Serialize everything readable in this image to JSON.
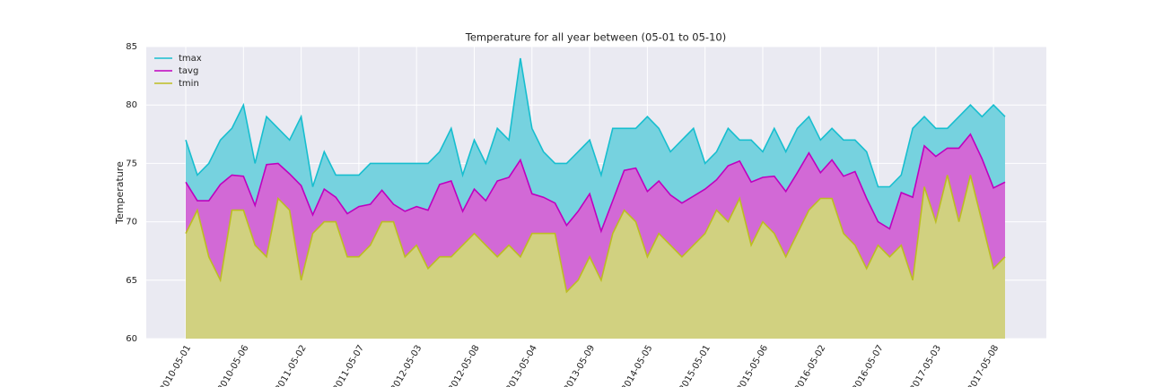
{
  "chart_data": {
    "type": "area",
    "title": "Temperature for all year between (05-01 to 05-10)",
    "ylabel": "Temperature",
    "categories": [
      "2010-05-01",
      null,
      null,
      null,
      null,
      "2010-05-06",
      null,
      null,
      null,
      null,
      "2011-05-02",
      null,
      null,
      null,
      null,
      "2011-05-07",
      null,
      null,
      null,
      null,
      "2012-05-03",
      null,
      null,
      null,
      null,
      "2012-05-08",
      null,
      null,
      null,
      null,
      "2013-05-04",
      null,
      null,
      null,
      null,
      "2013-05-09",
      null,
      null,
      null,
      null,
      "2014-05-05",
      null,
      null,
      null,
      null,
      "2015-05-01",
      null,
      null,
      null,
      null,
      "2015-05-06",
      null,
      null,
      null,
      null,
      "2016-05-02",
      null,
      null,
      null,
      null,
      "2016-05-07",
      null,
      null,
      null,
      null,
      "2017-05-03",
      null,
      null,
      null,
      null,
      "2017-05-08",
      null
    ],
    "series": [
      {
        "name": "tmax",
        "color": "#17becf",
        "values": [
          77,
          74,
          75,
          77,
          78,
          80,
          75,
          79,
          78,
          77,
          79,
          73,
          76,
          74,
          74,
          74,
          75,
          75,
          75,
          75,
          75,
          75,
          76,
          78,
          74,
          77,
          75,
          78,
          77,
          84,
          78,
          76,
          75,
          75,
          76,
          77,
          74,
          78,
          78,
          78,
          79,
          78,
          76,
          77,
          78,
          75,
          76,
          78,
          77,
          77,
          76,
          78,
          76,
          78,
          79,
          77,
          78,
          77,
          77,
          76,
          73,
          73,
          74,
          78,
          79,
          78,
          78,
          79,
          80,
          79,
          80,
          79
        ]
      },
      {
        "name": "tavg",
        "color": "#bf00bf",
        "values": [
          73.4,
          71.8,
          71.8,
          73.2,
          74,
          73.9,
          71.4,
          74.9,
          75,
          74.1,
          73.1,
          70.6,
          72.8,
          72.1,
          70.7,
          71.3,
          71.5,
          72.7,
          71.5,
          70.9,
          71.3,
          71,
          73.2,
          73.5,
          70.9,
          72.8,
          71.8,
          73.5,
          73.8,
          75.3,
          72.4,
          72.1,
          71.6,
          69.7,
          70.9,
          72.4,
          69.2,
          71.8,
          74.4,
          74.6,
          72.6,
          73.5,
          72.3,
          71.6,
          72.2,
          72.8,
          73.6,
          74.8,
          75.2,
          73.4,
          73.8,
          73.9,
          72.6,
          74.2,
          75.9,
          74.2,
          75.3,
          73.9,
          74.3,
          72,
          70,
          69.4,
          72.5,
          72.1,
          76.5,
          75.6,
          76.3,
          76.3,
          77.5,
          75.4,
          72.9,
          73.4
        ]
      },
      {
        "name": "tmin",
        "color": "#bcbd22",
        "values": [
          69,
          71,
          67,
          65,
          71,
          71,
          68,
          67,
          72,
          71,
          65,
          69,
          70,
          70,
          67,
          67,
          68,
          70,
          70,
          67,
          68,
          66,
          67,
          67,
          68,
          69,
          68,
          67,
          68,
          67,
          69,
          69,
          69,
          64,
          65,
          67,
          65,
          69,
          71,
          70,
          67,
          69,
          68,
          67,
          68,
          69,
          71,
          70,
          72,
          68,
          70,
          69,
          67,
          69,
          71,
          72,
          72,
          69,
          68,
          66,
          68,
          67,
          68,
          65,
          73,
          70,
          74,
          70,
          74,
          70,
          66,
          67
        ]
      }
    ],
    "ylim": [
      60,
      85
    ],
    "yticks": [
      60,
      65,
      70,
      75,
      80,
      85
    ],
    "grid": true,
    "legend": "upper left"
  }
}
